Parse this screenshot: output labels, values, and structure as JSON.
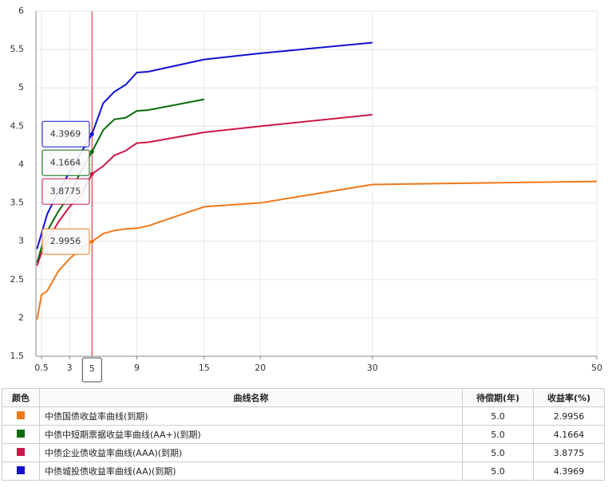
{
  "chart_data": {
    "type": "line",
    "x": [
      0.1,
      0.5,
      1,
      2,
      3,
      4,
      5,
      6,
      7,
      8,
      9,
      10,
      15,
      20,
      30,
      50
    ],
    "series": [
      {
        "color": "#f07818",
        "values": [
          1.98,
          2.3,
          2.35,
          2.61,
          2.77,
          2.9,
          2.9956,
          3.1,
          3.14,
          3.16,
          3.17,
          3.2,
          3.45,
          3.5,
          3.74,
          3.78
        ]
      },
      {
        "color": "#0a6a0a",
        "values": [
          2.72,
          2.92,
          3.13,
          3.39,
          3.6,
          3.91,
          4.1664,
          4.45,
          4.59,
          4.61,
          4.7,
          4.71,
          4.85,
          null,
          null,
          null
        ]
      },
      {
        "color": "#cc1848",
        "values": [
          2.68,
          2.85,
          3.0,
          3.25,
          3.45,
          3.6,
          3.8775,
          3.98,
          4.12,
          4.18,
          4.28,
          4.29,
          4.42,
          4.5,
          4.65,
          null
        ]
      },
      {
        "color": "#1010d0",
        "values": [
          2.9,
          3.1,
          3.35,
          3.65,
          3.9,
          4.15,
          4.3969,
          4.8,
          4.95,
          5.04,
          5.2,
          5.21,
          5.37,
          5.45,
          5.59,
          null
        ]
      }
    ],
    "xlim": [
      0,
      50
    ],
    "xticks": [
      0.5,
      3,
      9,
      15,
      20,
      30,
      50
    ],
    "ylim": [
      1.5,
      6
    ],
    "yticks": [
      1.5,
      2,
      2.5,
      3,
      3.5,
      4,
      4.5,
      5,
      5.5,
      6
    ],
    "highlight_x": 5,
    "highlight_color": "#d02020",
    "grid": true
  },
  "table": {
    "header": [
      "颜色",
      "曲线名称",
      "待偿期(年)",
      "收益率(%)"
    ],
    "rows": [
      [
        "中债国债收益率曲线(到期)",
        "5.0",
        "2.9956"
      ],
      [
        "中债中短期票据收益率曲线(AA+)(到期)",
        "5.0",
        "4.1664"
      ],
      [
        "中债企业债收益率曲线(AAA)(到期)",
        "5.0",
        "3.8775"
      ],
      [
        "中债城投债收益率曲线(AA)(到期)",
        "5.0",
        "4.3969"
      ]
    ]
  }
}
